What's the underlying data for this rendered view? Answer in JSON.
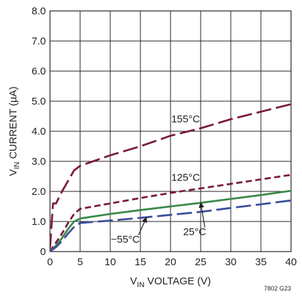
{
  "chart_data": {
    "type": "line",
    "title": "",
    "xlabel": {
      "prefix": "V",
      "sub": "IN",
      "suffix": " VOLTAGE (V)"
    },
    "ylabel": {
      "prefix": "V",
      "sub": "IN",
      "suffix": " CURRENT (µA)"
    },
    "xlim": [
      0,
      40
    ],
    "ylim": [
      0,
      8
    ],
    "x_ticks": [
      "0",
      "5",
      "10",
      "15",
      "20",
      "25",
      "30",
      "35",
      "40"
    ],
    "y_ticks": [
      "0",
      "1.0",
      "2.0",
      "3.0",
      "4.0",
      "5.0",
      "6.0",
      "7.0",
      "8.0"
    ],
    "grid": true,
    "legend": "none",
    "series": [
      {
        "name": "155°C",
        "color": "#7a1a3a",
        "dash": "long-dash",
        "x": [
          0,
          0.5,
          1.0,
          2.0,
          4.0,
          5.0,
          10,
          15,
          20,
          25,
          30,
          35,
          40
        ],
        "y": [
          0.1,
          1.6,
          1.6,
          2.0,
          2.7,
          2.85,
          3.2,
          3.5,
          3.85,
          4.1,
          4.4,
          4.65,
          4.9
        ]
      },
      {
        "name": "125°C",
        "color": "#7a1a3a",
        "dash": "short-dash",
        "x": [
          0,
          1,
          2,
          3,
          4,
          5,
          10,
          15,
          20,
          25,
          30,
          35,
          40
        ],
        "y": [
          0,
          0.3,
          0.6,
          0.95,
          1.25,
          1.42,
          1.6,
          1.78,
          1.95,
          2.1,
          2.25,
          2.4,
          2.55
        ]
      },
      {
        "name": "25°C",
        "color": "#3a8a4a",
        "dash": "solid",
        "x": [
          0,
          1,
          2,
          3,
          4,
          5,
          10,
          15,
          20,
          25,
          30,
          35,
          40
        ],
        "y": [
          0,
          0.2,
          0.45,
          0.75,
          1.0,
          1.1,
          1.25,
          1.38,
          1.5,
          1.62,
          1.75,
          1.88,
          2.02
        ]
      },
      {
        "name": "−55°C",
        "color": "#3a4f9a",
        "dash": "long-dash",
        "x": [
          0,
          1,
          2,
          3,
          4,
          5,
          10,
          15,
          20,
          25,
          30,
          35,
          40
        ],
        "y": [
          0,
          0.15,
          0.35,
          0.6,
          0.82,
          0.95,
          1.03,
          1.12,
          1.22,
          1.32,
          1.45,
          1.57,
          1.7
        ]
      }
    ],
    "annotations": [
      {
        "text": "155°C",
        "x": 22.5,
        "y": 4.3
      },
      {
        "text": "125°C",
        "x": 22.5,
        "y": 2.35
      },
      {
        "text": "25°C",
        "x": 24.0,
        "y": 0.55,
        "arrow_to": [
          25.0,
          1.62
        ]
      },
      {
        "text": "−55°C",
        "x": 12.5,
        "y": 0.3,
        "arrow_to": [
          16.0,
          1.13
        ]
      }
    ],
    "figure_code": "7802 G23"
  }
}
